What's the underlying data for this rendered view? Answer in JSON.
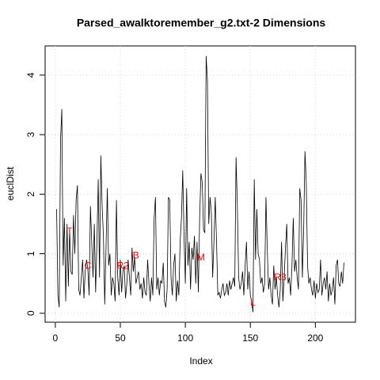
{
  "chart_data": {
    "type": "line",
    "title": "Parsed_awalktoremember_g2.txt-2 Dimensions",
    "x_label": "Index",
    "y_label": "euclDist",
    "color": "#000000",
    "grid": true,
    "xlim": [
      -7.84,
      230.84
    ],
    "ylim": [
      -0.15,
      4.49
    ],
    "xticks": [
      0,
      50,
      100,
      150,
      200
    ],
    "yticks": [
      0,
      1,
      2,
      3,
      4
    ],
    "x": [
      1,
      2,
      3,
      4,
      5,
      6,
      7,
      8,
      9,
      10,
      11,
      12,
      13,
      14,
      15,
      16,
      17,
      18,
      19,
      20,
      21,
      22,
      23,
      24,
      25,
      26,
      27,
      28,
      29,
      30,
      31,
      32,
      33,
      34,
      35,
      36,
      37,
      38,
      39,
      40,
      41,
      42,
      43,
      44,
      45,
      46,
      47,
      48,
      49,
      50,
      51,
      52,
      53,
      54,
      55,
      56,
      57,
      58,
      59,
      60,
      61,
      62,
      63,
      64,
      65,
      66,
      67,
      68,
      69,
      70,
      71,
      72,
      73,
      74,
      75,
      76,
      77,
      78,
      79,
      80,
      81,
      82,
      83,
      84,
      85,
      86,
      87,
      88,
      89,
      90,
      91,
      92,
      93,
      94,
      95,
      96,
      97,
      98,
      99,
      100,
      101,
      102,
      103,
      104,
      105,
      106,
      107,
      108,
      109,
      110,
      111,
      112,
      113,
      114,
      115,
      116,
      117,
      118,
      119,
      120,
      121,
      122,
      123,
      124,
      125,
      126,
      127,
      128,
      129,
      130,
      131,
      132,
      133,
      134,
      135,
      136,
      137,
      138,
      139,
      140,
      141,
      142,
      143,
      144,
      145,
      146,
      147,
      148,
      149,
      150,
      151,
      152,
      153,
      154,
      155,
      156,
      157,
      158,
      159,
      160,
      161,
      162,
      163,
      164,
      165,
      166,
      167,
      168,
      169,
      170,
      171,
      172,
      173,
      174,
      175,
      176,
      177,
      178,
      179,
      180,
      181,
      182,
      183,
      184,
      185,
      186,
      187,
      188,
      189,
      190,
      191,
      192,
      193,
      194,
      195,
      196,
      197,
      198,
      199,
      200,
      201,
      202,
      203,
      204,
      205,
      206,
      207,
      208,
      209,
      210,
      211,
      212,
      213,
      214,
      215,
      216,
      217,
      218,
      219,
      220,
      221,
      222
    ],
    "values": [
      1.75,
      0.3,
      0.1,
      2.9,
      3.43,
      0.8,
      1.6,
      0.2,
      1.5,
      0.45,
      1.4,
      0.7,
      0.65,
      1.65,
      1.0,
      1.9,
      2.15,
      0.4,
      0.3,
      0.6,
      0.9,
      0.25,
      0.7,
      0.9,
      0.75,
      0.3,
      1.8,
      1.2,
      0.6,
      1.5,
      0.35,
      1.2,
      2.25,
      0.6,
      2.65,
      1.8,
      1.3,
      0.15,
      1.1,
      2.1,
      0.8,
      1.0,
      0.3,
      0.6,
      0.5,
      0.2,
      1.9,
      0.6,
      0.3,
      0.9,
      0.35,
      0.7,
      0.8,
      0.25,
      0.5,
      0.9,
      0.6,
      0.3,
      1.1,
      0.7,
      0.95,
      0.5,
      0.6,
      0.7,
      0.4,
      0.5,
      0.25,
      0.6,
      0.35,
      0.3,
      0.9,
      0.5,
      0.2,
      0.6,
      0.3,
      1.6,
      1.95,
      0.4,
      0.6,
      0.3,
      0.55,
      0.5,
      0.85,
      0.2,
      0.1,
      0.4,
      1.95,
      1.9,
      0.6,
      0.3,
      0.8,
      1.0,
      0.2,
      0.55,
      0.3,
      1.2,
      1.6,
      2.4,
      1.3,
      0.5,
      2.1,
      0.8,
      1.2,
      0.4,
      1.1,
      0.9,
      1.3,
      0.5,
      1.2,
      0.35,
      1.6,
      2.35,
      2.2,
      1.4,
      1.35,
      4.32,
      3.9,
      1.5,
      1.95,
      1.7,
      0.6,
      1.2,
      1.95,
      1.2,
      0.3,
      0.35,
      0.25,
      0.4,
      0.5,
      0.3,
      0.35,
      0.5,
      0.3,
      0.55,
      0.4,
      0.5,
      0.6,
      0.45,
      2.62,
      1.8,
      0.6,
      0.4,
      0.5,
      0.7,
      0.3,
      0.8,
      1.2,
      0.4,
      0.7,
      0.3,
      0.2,
      0.02,
      2.25,
      0.9,
      1.75,
      1.0,
      0.9,
      0.5,
      0.6,
      0.35,
      0.5,
      1.95,
      1.1,
      0.4,
      0.6,
      0.3,
      0.15,
      0.8,
      0.4,
      0.6,
      0.3,
      0.1,
      0.4,
      1.2,
      0.2,
      0.6,
      1.1,
      1.5,
      0.5,
      0.6,
      0.3,
      0.8,
      1.6,
      0.7,
      0.9,
      0.6,
      0.4,
      2.1,
      1.9,
      0.6,
      1.4,
      2.72,
      2.2,
      0.8,
      0.5,
      0.6,
      0.4,
      0.3,
      0.55,
      0.25,
      0.5,
      0.35,
      0.4,
      0.9,
      0.3,
      0.5,
      0.6,
      0.4,
      0.7,
      0.2,
      0.5,
      0.3,
      0.4,
      0.6,
      0.15,
      0.8,
      0.9,
      0.5,
      0.45,
      0.7,
      0.5,
      0.85
    ],
    "annotation_color": "#ff0000",
    "annotations": [
      {
        "text": "T",
        "x": 11,
        "y": 1.37
      },
      {
        "text": "C",
        "x": 25,
        "y": 0.79
      },
      {
        "text": "R2",
        "x": 52,
        "y": 0.79
      },
      {
        "text": "B",
        "x": 62,
        "y": 0.96
      },
      {
        "text": "M",
        "x": 112,
        "y": 0.93
      },
      {
        "text": "L",
        "x": 152,
        "y": 0.17
      },
      {
        "text": "R3",
        "x": 173,
        "y": 0.6
      }
    ]
  }
}
